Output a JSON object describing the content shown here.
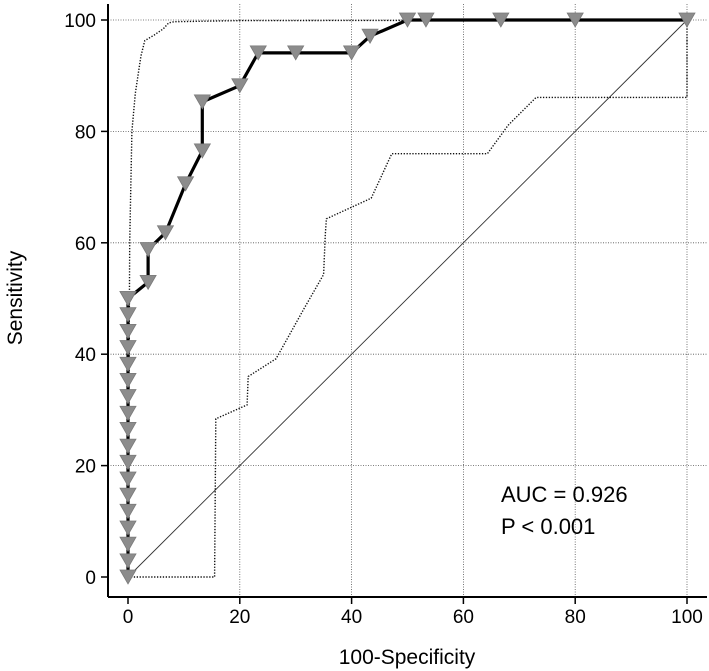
{
  "chart_data": {
    "type": "line",
    "title": "",
    "xlabel": "100-Specificity",
    "ylabel": "Sensitivity",
    "xlim": [
      0,
      100
    ],
    "ylim": [
      0,
      100
    ],
    "xticks": [
      "0",
      "20",
      "40",
      "60",
      "80",
      "100"
    ],
    "yticks": [
      "0",
      "20",
      "40",
      "60",
      "80",
      "100"
    ],
    "grid": true,
    "legend": "none",
    "annotations": [
      "AUC = 0.926",
      "P < 0.001"
    ],
    "series": [
      {
        "style": "solid-thick",
        "marker": "inverted-triangle",
        "x": [
          0,
          0,
          0,
          0,
          0,
          0,
          0,
          0,
          0,
          0,
          0,
          0,
          0,
          0,
          0,
          0,
          0,
          0,
          0,
          3.6,
          3.6,
          6.7,
          10.3,
          13.3,
          13.3,
          20,
          23.3,
          30,
          40,
          43.3,
          50,
          53.3,
          66.7,
          80,
          100
        ],
        "y": [
          0,
          2.9,
          5.9,
          8.8,
          11.8,
          14.7,
          17.6,
          20.6,
          23.5,
          26.5,
          29.4,
          32.4,
          35.3,
          38.2,
          41.2,
          44.1,
          47.1,
          50,
          50,
          52.9,
          58.8,
          61.8,
          70.6,
          76.5,
          85.3,
          88.2,
          94.1,
          94.1,
          94.1,
          97.1,
          100,
          100,
          100,
          100,
          100
        ]
      },
      {
        "style": "dotted",
        "marker": "none",
        "x": [
          0,
          0.3,
          0.7,
          1.3,
          2.3,
          3,
          4.7,
          6.3,
          7.3,
          8.3,
          20,
          100
        ],
        "y": [
          0,
          60,
          80,
          86.8,
          93.5,
          96.3,
          97.3,
          98.4,
          99.5,
          99.7,
          99.9,
          100
        ]
      },
      {
        "style": "dotted",
        "marker": "none",
        "x": [
          0,
          15.5,
          15.7,
          21.3,
          21.5,
          26.5,
          31.5,
          35,
          35.3,
          35.5,
          43.5,
          47.2,
          64.3,
          68,
          73,
          100,
          100
        ],
        "y": [
          0,
          0,
          28.4,
          30.9,
          36,
          39.2,
          48.2,
          54.3,
          61.5,
          64.3,
          68,
          76,
          76,
          81.1,
          86.1,
          86.1,
          100
        ]
      },
      {
        "style": "diagonal-reference",
        "marker": "none",
        "x": [
          0,
          100
        ],
        "y": [
          0,
          100
        ]
      }
    ]
  }
}
